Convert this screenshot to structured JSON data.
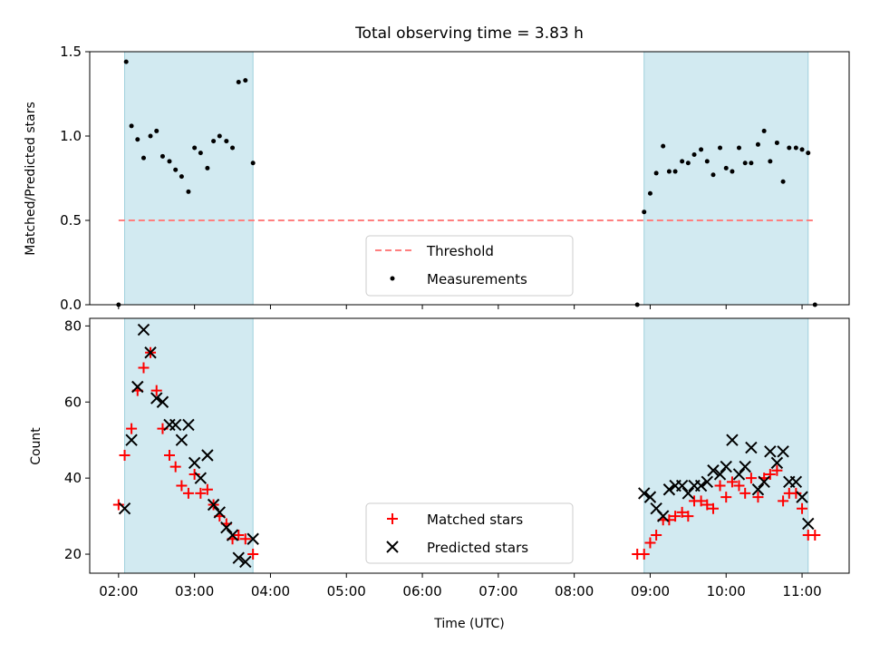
{
  "chart_data": {
    "type": "scatter",
    "title": "Total observing time = 3.83 h",
    "xlabel": "Time (UTC)",
    "x_ticks": [
      "02:00",
      "03:00",
      "04:00",
      "05:00",
      "06:00",
      "07:00",
      "08:00",
      "09:00",
      "10:00",
      "11:00"
    ],
    "x_range_hours": [
      1.62,
      11.62
    ],
    "shaded_intervals_hours": [
      [
        2.08,
        3.77
      ],
      [
        8.92,
        11.08
      ]
    ],
    "shade_color": "#add8e6",
    "panels": [
      {
        "ylabel": "Matched/Predicted stars",
        "ylim": [
          0,
          1.5
        ],
        "y_ticks": [
          "0.0",
          "0.5",
          "1.0",
          "1.5"
        ],
        "threshold": {
          "name": "Threshold",
          "value": 0.5,
          "color": "#ff7f7f"
        },
        "legend": [
          "Threshold",
          "Measurements"
        ],
        "series": [
          {
            "name": "Measurements",
            "marker": "dot",
            "color": "#000000",
            "points": [
              [
                2.0,
                0.0
              ],
              [
                2.1,
                1.44
              ],
              [
                2.17,
                1.06
              ],
              [
                2.25,
                0.98
              ],
              [
                2.33,
                0.87
              ],
              [
                2.42,
                1.0
              ],
              [
                2.5,
                1.03
              ],
              [
                2.58,
                0.88
              ],
              [
                2.67,
                0.85
              ],
              [
                2.75,
                0.8
              ],
              [
                2.83,
                0.76
              ],
              [
                2.92,
                0.67
              ],
              [
                3.0,
                0.93
              ],
              [
                3.08,
                0.9
              ],
              [
                3.17,
                0.81
              ],
              [
                3.25,
                0.97
              ],
              [
                3.33,
                1.0
              ],
              [
                3.42,
                0.97
              ],
              [
                3.5,
                0.93
              ],
              [
                3.58,
                1.32
              ],
              [
                3.67,
                1.33
              ],
              [
                3.77,
                0.84
              ],
              [
                8.83,
                0.0
              ],
              [
                8.92,
                0.55
              ],
              [
                9.0,
                0.66
              ],
              [
                9.08,
                0.78
              ],
              [
                9.17,
                0.94
              ],
              [
                9.25,
                0.79
              ],
              [
                9.33,
                0.79
              ],
              [
                9.42,
                0.85
              ],
              [
                9.5,
                0.84
              ],
              [
                9.58,
                0.89
              ],
              [
                9.67,
                0.92
              ],
              [
                9.75,
                0.85
              ],
              [
                9.83,
                0.77
              ],
              [
                9.92,
                0.93
              ],
              [
                10.0,
                0.81
              ],
              [
                10.08,
                0.79
              ],
              [
                10.17,
                0.93
              ],
              [
                10.25,
                0.84
              ],
              [
                10.33,
                0.84
              ],
              [
                10.42,
                0.95
              ],
              [
                10.5,
                1.03
              ],
              [
                10.58,
                0.85
              ],
              [
                10.67,
                0.96
              ],
              [
                10.75,
                0.73
              ],
              [
                10.83,
                0.93
              ],
              [
                10.92,
                0.93
              ],
              [
                11.0,
                0.92
              ],
              [
                11.08,
                0.9
              ],
              [
                11.17,
                0.0
              ]
            ]
          }
        ]
      },
      {
        "ylabel": "Count",
        "ylim": [
          15,
          82
        ],
        "y_ticks": [
          "20",
          "40",
          "60",
          "80"
        ],
        "legend": [
          "Matched stars",
          "Predicted stars"
        ],
        "series": [
          {
            "name": "Matched stars",
            "marker": "plus",
            "color": "#ff0000",
            "points": [
              [
                2.0,
                33
              ],
              [
                2.08,
                46
              ],
              [
                2.17,
                53
              ],
              [
                2.25,
                63
              ],
              [
                2.33,
                69
              ],
              [
                2.42,
                73
              ],
              [
                2.5,
                63
              ],
              [
                2.58,
                53
              ],
              [
                2.67,
                46
              ],
              [
                2.75,
                43
              ],
              [
                2.83,
                38
              ],
              [
                2.92,
                36
              ],
              [
                3.0,
                41
              ],
              [
                3.08,
                36
              ],
              [
                3.17,
                37
              ],
              [
                3.25,
                33
              ],
              [
                3.33,
                30
              ],
              [
                3.42,
                28
              ],
              [
                3.5,
                24
              ],
              [
                3.58,
                25
              ],
              [
                3.67,
                24
              ],
              [
                3.77,
                20
              ],
              [
                8.83,
                20
              ],
              [
                8.92,
                20
              ],
              [
                9.0,
                23
              ],
              [
                9.08,
                25
              ],
              [
                9.17,
                29
              ],
              [
                9.25,
                29
              ],
              [
                9.33,
                30
              ],
              [
                9.42,
                31
              ],
              [
                9.5,
                30
              ],
              [
                9.58,
                34
              ],
              [
                9.67,
                34
              ],
              [
                9.75,
                33
              ],
              [
                9.83,
                32
              ],
              [
                9.92,
                38
              ],
              [
                10.0,
                35
              ],
              [
                10.08,
                39
              ],
              [
                10.17,
                38
              ],
              [
                10.25,
                36
              ],
              [
                10.33,
                40
              ],
              [
                10.42,
                35
              ],
              [
                10.5,
                40
              ],
              [
                10.58,
                41
              ],
              [
                10.67,
                42
              ],
              [
                10.75,
                34
              ],
              [
                10.83,
                36
              ],
              [
                10.92,
                36
              ],
              [
                11.0,
                32
              ],
              [
                11.08,
                25
              ],
              [
                11.17,
                25
              ]
            ]
          },
          {
            "name": "Predicted stars",
            "marker": "x",
            "color": "#000000",
            "points": [
              [
                2.08,
                32
              ],
              [
                2.17,
                50
              ],
              [
                2.25,
                64
              ],
              [
                2.33,
                79
              ],
              [
                2.42,
                73
              ],
              [
                2.5,
                61
              ],
              [
                2.58,
                60
              ],
              [
                2.67,
                54
              ],
              [
                2.75,
                54
              ],
              [
                2.83,
                50
              ],
              [
                2.92,
                54
              ],
              [
                3.0,
                44
              ],
              [
                3.08,
                40
              ],
              [
                3.17,
                46
              ],
              [
                3.25,
                33
              ],
              [
                3.33,
                31
              ],
              [
                3.42,
                27
              ],
              [
                3.5,
                25
              ],
              [
                3.58,
                19
              ],
              [
                3.67,
                18
              ],
              [
                3.77,
                24
              ],
              [
                8.92,
                36
              ],
              [
                9.0,
                35
              ],
              [
                9.08,
                32
              ],
              [
                9.17,
                30
              ],
              [
                9.25,
                37
              ],
              [
                9.33,
                38
              ],
              [
                9.42,
                38
              ],
              [
                9.5,
                36
              ],
              [
                9.58,
                38
              ],
              [
                9.67,
                38
              ],
              [
                9.75,
                39
              ],
              [
                9.83,
                42
              ],
              [
                9.92,
                41
              ],
              [
                10.0,
                43
              ],
              [
                10.08,
                50
              ],
              [
                10.17,
                41
              ],
              [
                10.25,
                43
              ],
              [
                10.33,
                48
              ],
              [
                10.42,
                37
              ],
              [
                10.5,
                39
              ],
              [
                10.58,
                47
              ],
              [
                10.67,
                44
              ],
              [
                10.75,
                47
              ],
              [
                10.83,
                39
              ],
              [
                10.92,
                39
              ],
              [
                11.0,
                35
              ],
              [
                11.08,
                28
              ]
            ]
          }
        ]
      }
    ]
  }
}
